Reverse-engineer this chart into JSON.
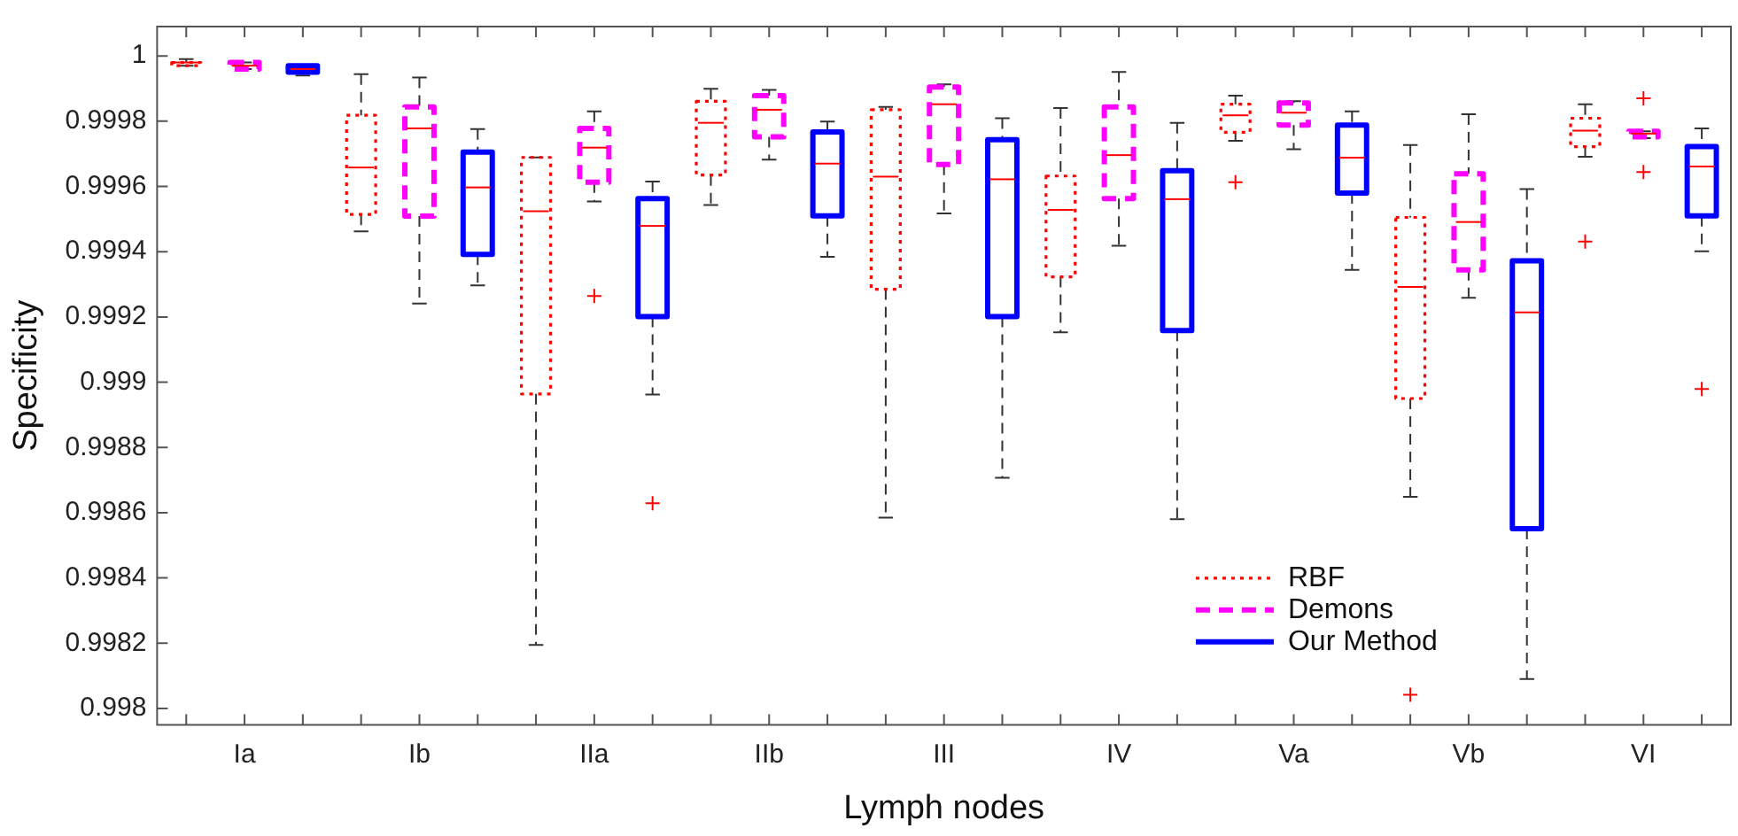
{
  "chart_data": {
    "type": "box",
    "xlabel": "Lymph nodes",
    "ylabel": "Specificity",
    "categories": [
      "Ia",
      "Ib",
      "IIa",
      "IIb",
      "III",
      "IV",
      "Va",
      "Vb",
      "VI"
    ],
    "ylim": [
      0.99795,
      1.00009
    ],
    "yticks": [
      0.998,
      0.9982,
      0.9984,
      0.9986,
      0.9988,
      0.999,
      0.9992,
      0.9994,
      0.9996,
      0.9998,
      1
    ],
    "grid": false,
    "legend": "bottom right",
    "series": [
      {
        "name": "RBF",
        "color": "#ff0000",
        "line_style": "dotted",
        "boxes": [
          {
            "low": 0.99997,
            "q1": 0.99997,
            "median": 0.99998,
            "q3": 0.99998,
            "high": 0.99999
          },
          {
            "low": 0.999462,
            "q1": 0.999514,
            "median": 0.999658,
            "q3": 0.999818,
            "high": 0.999944
          },
          {
            "low": 0.998195,
            "q1": 0.998964,
            "median": 0.999524,
            "q3": 0.999689,
            "high": 0.999689
          },
          {
            "low": 0.999543,
            "q1": 0.999635,
            "median": 0.999795,
            "q3": 0.999861,
            "high": 0.999899
          },
          {
            "low": 0.998585,
            "q1": 0.999285,
            "median": 0.99963,
            "q3": 0.999835,
            "high": 0.999844
          },
          {
            "low": 0.999153,
            "q1": 0.999323,
            "median": 0.999528,
            "q3": 0.999632,
            "high": 0.99984
          },
          {
            "low": 0.99974,
            "q1": 0.999766,
            "median": 0.999818,
            "q3": 0.999852,
            "high": 0.999878,
            "outliers": [
              0.999613
            ]
          },
          {
            "low": 0.998649,
            "q1": 0.99895,
            "median": 0.999292,
            "q3": 0.999505,
            "high": 0.999727,
            "outliers": [
              0.998042
            ]
          },
          {
            "low": 0.999691,
            "q1": 0.999722,
            "median": 0.999771,
            "q3": 0.999809,
            "high": 0.999852,
            "outliers": [
              0.999431
            ]
          }
        ]
      },
      {
        "name": "Demons",
        "color": "#ff00ff",
        "line_style": "dashed",
        "boxes": [
          {
            "low": 0.99996,
            "q1": 0.99996,
            "median": 0.99997,
            "q3": 0.99998,
            "high": 0.99998
          },
          {
            "low": 0.999241,
            "q1": 0.999509,
            "median": 0.999778,
            "q3": 0.999844,
            "high": 0.999934
          },
          {
            "low": 0.999554,
            "q1": 0.999613,
            "median": 0.999719,
            "q3": 0.999778,
            "high": 0.99983,
            "outliers": [
              0.999264
            ]
          },
          {
            "low": 0.999682,
            "q1": 0.999752,
            "median": 0.999835,
            "q3": 0.999878,
            "high": 0.999896
          },
          {
            "low": 0.999517,
            "q1": 0.999667,
            "median": 0.999852,
            "q3": 0.999905,
            "high": 0.999913
          },
          {
            "low": 0.999418,
            "q1": 0.999563,
            "median": 0.999696,
            "q3": 0.999844,
            "high": 0.999951
          },
          {
            "low": 0.999714,
            "q1": 0.999788,
            "median": 0.999826,
            "q3": 0.999856,
            "high": 0.999861
          },
          {
            "low": 0.999259,
            "q1": 0.999344,
            "median": 0.999491,
            "q3": 0.999639,
            "high": 0.999821
          },
          {
            "low": 0.999748,
            "q1": 0.999752,
            "median": 0.999762,
            "q3": 0.999769,
            "high": 0.999769,
            "outliers": [
              0.99987,
              0.999644
            ]
          }
        ]
      },
      {
        "name": "Our Method",
        "color": "#0000ff",
        "line_style": "solid",
        "boxes": [
          {
            "low": 0.99994,
            "q1": 0.99995,
            "median": 0.99996,
            "q3": 0.99997,
            "high": 0.99997
          },
          {
            "low": 0.999297,
            "q1": 0.999392,
            "median": 0.999597,
            "q3": 0.999705,
            "high": 0.999776
          },
          {
            "low": 0.998962,
            "q1": 0.999201,
            "median": 0.999479,
            "q3": 0.999563,
            "high": 0.999615,
            "outliers": [
              0.998629
            ]
          },
          {
            "low": 0.999384,
            "q1": 0.99951,
            "median": 0.99967,
            "q3": 0.999767,
            "high": 0.999799
          },
          {
            "low": 0.998707,
            "q1": 0.999201,
            "median": 0.999622,
            "q3": 0.999743,
            "high": 0.999809
          },
          {
            "low": 0.99858,
            "q1": 0.999158,
            "median": 0.999561,
            "q3": 0.999648,
            "high": 0.999795
          },
          {
            "low": 0.999344,
            "q1": 0.99958,
            "median": 0.999688,
            "q3": 0.999788,
            "high": 0.99983
          },
          {
            "low": 0.99809,
            "q1": 0.998551,
            "median": 0.999214,
            "q3": 0.999372,
            "high": 0.999592
          },
          {
            "low": 0.999401,
            "q1": 0.99951,
            "median": 0.999661,
            "q3": 0.999722,
            "high": 0.999778,
            "outliers": [
              0.998979
            ]
          }
        ]
      }
    ]
  }
}
